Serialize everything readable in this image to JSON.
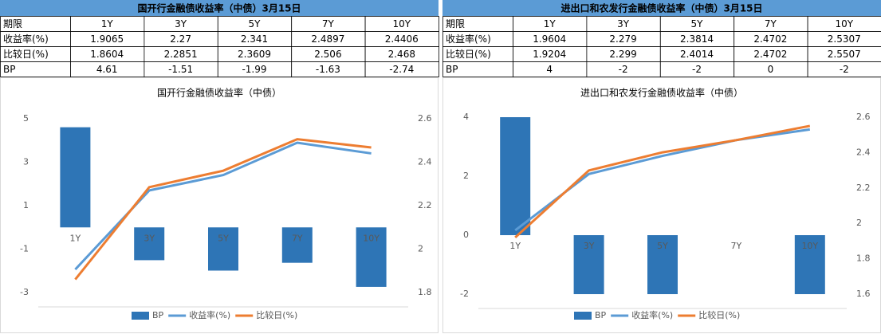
{
  "tables": [
    {
      "title": "国开行金融债收益率（中债）3月15日",
      "header": [
        "期限",
        "1Y",
        "3Y",
        "5Y",
        "7Y",
        "10Y"
      ],
      "rows": [
        [
          "收益率(%)",
          "1.9065",
          "2.27",
          "2.341",
          "2.4897",
          "2.4406"
        ],
        [
          "比较日(%)",
          "1.8604",
          "2.2851",
          "2.3609",
          "2.506",
          "2.468"
        ],
        [
          "BP",
          "4.61",
          "-1.51",
          "-1.99",
          "-1.63",
          "-2.74"
        ]
      ]
    },
    {
      "title": "进出口和农发行金融债收益率（中债）3月15日",
      "header": [
        "期限",
        "1Y",
        "3Y",
        "5Y",
        "7Y",
        "10Y"
      ],
      "rows": [
        [
          "收益率(%)",
          "1.9604",
          "2.279",
          "2.3814",
          "2.4702",
          "2.5307"
        ],
        [
          "比较日(%)",
          "1.9204",
          "2.299",
          "2.4014",
          "2.4702",
          "2.5507"
        ],
        [
          "BP",
          "4",
          "-2",
          "-2",
          "0",
          "-2"
        ]
      ]
    }
  ],
  "chart_data": [
    {
      "type": "bar",
      "title": "国开行金融债收益率（中债）",
      "categories": [
        "1Y",
        "3Y",
        "5Y",
        "7Y",
        "10Y"
      ],
      "series": [
        {
          "name": "BP",
          "color": "#2e75b6",
          "values": [
            4.61,
            -1.51,
            -1.99,
            -1.63,
            -2.74
          ]
        },
        {
          "name": "收益率(%)",
          "color": "#5b9bd5",
          "axis": "y2",
          "type": "line",
          "values": [
            1.9065,
            2.27,
            2.341,
            2.4897,
            2.4406
          ]
        },
        {
          "name": "比较日(%)",
          "color": "#ed7d31",
          "axis": "y2",
          "type": "line",
          "values": [
            1.8604,
            2.2851,
            2.3609,
            2.506,
            2.468
          ]
        }
      ],
      "ylim": [
        -3,
        5
      ],
      "yticks": [
        -3,
        -1,
        1,
        3,
        5
      ],
      "y2lim": [
        1.8,
        2.6
      ],
      "y2ticks": [
        1.8,
        2,
        2.2,
        2.4,
        2.6
      ],
      "legend": "bottom"
    },
    {
      "type": "bar",
      "title": "进出口和农发行金融债收益率（中债）",
      "categories": [
        "1Y",
        "3Y",
        "5Y",
        "7Y",
        "10Y"
      ],
      "series": [
        {
          "name": "BP",
          "color": "#2e75b6",
          "values": [
            4,
            -2,
            -2,
            0,
            -2
          ]
        },
        {
          "name": "收益率(%)",
          "color": "#5b9bd5",
          "axis": "y2",
          "type": "line",
          "values": [
            1.9604,
            2.279,
            2.3814,
            2.4702,
            2.5307
          ]
        },
        {
          "name": "比较日(%)",
          "color": "#ed7d31",
          "axis": "y2",
          "type": "line",
          "values": [
            1.9204,
            2.299,
            2.4014,
            2.4702,
            2.5507
          ]
        }
      ],
      "ylim": [
        -2,
        4
      ],
      "yticks": [
        -2,
        0,
        2,
        4
      ],
      "y2lim": [
        1.6,
        2.6
      ],
      "y2ticks": [
        1.6,
        1.8,
        2,
        2.2,
        2.4,
        2.6
      ],
      "legend": "bottom"
    }
  ]
}
